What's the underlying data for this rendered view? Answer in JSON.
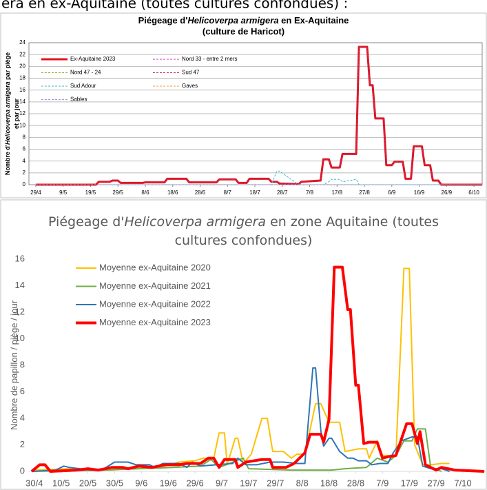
{
  "header_text": "era en ex-Aquitaine (toutes cultures confondues) :",
  "chart_data": [
    {
      "type": "line",
      "title": [
        [
          "Piégeage d'",
          "Helicoverpa armigera",
          " en Ex-Aquitaine"
        ],
        [
          "(culture de Haricot)"
        ]
      ],
      "y_label": [
        [
          "Nombre d'",
          "Helicoverpa armigera",
          " par piège"
        ],
        [
          "et par jour"
        ]
      ],
      "x": [
        0,
        22,
        23,
        27,
        28,
        30,
        31,
        39,
        40,
        47,
        48,
        55,
        56,
        66,
        67,
        73,
        74,
        77,
        78,
        85,
        86,
        88,
        89,
        96,
        97,
        104,
        105,
        107,
        108,
        111,
        112,
        117,
        118,
        121,
        122,
        123,
        124,
        127,
        128,
        130,
        131,
        134,
        135,
        137,
        138,
        141,
        142,
        144,
        145,
        147,
        148,
        163
      ],
      "xlim": [
        -2.5,
        163
      ],
      "xticks": [
        {
          "value": 0,
          "label": "29/4"
        },
        {
          "value": 10,
          "label": "9/5"
        },
        {
          "value": 20,
          "label": "19/5"
        },
        {
          "value": 30,
          "label": "29/5"
        },
        {
          "value": 40,
          "label": "8/6"
        },
        {
          "value": 50,
          "label": "18/6"
        },
        {
          "value": 60,
          "label": "28/6"
        },
        {
          "value": 70,
          "label": "8/7"
        },
        {
          "value": 80,
          "label": "18/7"
        },
        {
          "value": 90,
          "label": "28/7"
        },
        {
          "value": 100,
          "label": "7/8"
        },
        {
          "value": 110,
          "label": "17/8"
        },
        {
          "value": 120,
          "label": "27/8"
        },
        {
          "value": 130,
          "label": "6/9"
        },
        {
          "value": 140,
          "label": "16/9"
        },
        {
          "value": 150,
          "label": "26/9"
        },
        {
          "value": 160,
          "label": "6/10"
        }
      ],
      "ylim": [
        0,
        24
      ],
      "yticks": [
        0,
        2,
        4,
        6,
        8,
        10,
        12,
        14,
        16,
        18,
        20,
        22,
        24
      ],
      "grid": true,
      "legend": "top-left",
      "series": [
        {
          "name": "Ex-Aquitaine 2023",
          "color": "#e0141c",
          "width": 3,
          "line_style": "solid",
          "values": [
            0,
            0,
            0.5,
            0.5,
            0.7,
            0.7,
            0.3,
            0.3,
            0.4,
            0.4,
            1.0,
            1.0,
            0.4,
            0.4,
            0.9,
            0.9,
            0.3,
            0.3,
            1.0,
            1.0,
            0.5,
            0.5,
            0.2,
            0.1,
            0.5,
            0.7,
            4.3,
            4.3,
            2.9,
            2.9,
            5.2,
            5.2,
            23.3,
            23.3,
            16.8,
            16.8,
            11.2,
            11.2,
            3.3,
            3.3,
            3.9,
            3.9,
            1.0,
            1.0,
            6.5,
            6.5,
            3.3,
            3.3,
            0.7,
            0.7,
            0,
            0
          ]
        },
        {
          "name": "Nord 33 - entre 2 mers",
          "color": "#cc33cc",
          "width": 1,
          "line_style": "dashed",
          "values": [
            0,
            0,
            0,
            0,
            0,
            0,
            0,
            0,
            0,
            0,
            0,
            0,
            0,
            0,
            0,
            0,
            0,
            0,
            0,
            0,
            0,
            0,
            0,
            0,
            0,
            0,
            0,
            0,
            0,
            0,
            0,
            0,
            0,
            0,
            0,
            0,
            0,
            0,
            0,
            0,
            0,
            0,
            0,
            0,
            0,
            0,
            0,
            0,
            0,
            0,
            0,
            0
          ]
        },
        {
          "name": "Nord 47 - 24",
          "color": "#99a633",
          "width": 1,
          "line_style": "dashed",
          "values": [
            0,
            0,
            0,
            0,
            0,
            0,
            0,
            0,
            0,
            0,
            0,
            0,
            0,
            0,
            0,
            0,
            0,
            0,
            0,
            0,
            0,
            0,
            0,
            0,
            0,
            0,
            0,
            0,
            0,
            0,
            0,
            0,
            0,
            0,
            0,
            0,
            0,
            0,
            0,
            0,
            0,
            0,
            0,
            0,
            0,
            0,
            0,
            0,
            0,
            0,
            0,
            0
          ]
        },
        {
          "name": "Sud 47",
          "color": "#c0306f",
          "width": 1,
          "line_style": "dashed",
          "values": [
            0,
            0,
            0.5,
            0.5,
            0.7,
            0.7,
            0.3,
            0.3,
            0.4,
            0.4,
            1.0,
            1.0,
            0.4,
            0.4,
            0.9,
            0.9,
            0.3,
            0.3,
            1.0,
            1.0,
            0.5,
            0.5,
            0.2,
            0.1,
            0.5,
            0.7,
            4.3,
            4.3,
            2.9,
            2.9,
            5.2,
            5.2,
            23.3,
            23.3,
            16.8,
            16.8,
            11.2,
            11.2,
            3.3,
            3.3,
            3.9,
            3.9,
            1.0,
            1.0,
            6.5,
            6.5,
            3.3,
            3.3,
            0.7,
            0.7,
            0,
            0
          ]
        },
        {
          "name": "Sud Adour",
          "color": "#33bbcc",
          "width": 1,
          "line_style": "dashed",
          "values": [
            0,
            0,
            0,
            0,
            0,
            0,
            0,
            0,
            0,
            0,
            0,
            0,
            0,
            0,
            0,
            0,
            0,
            0,
            0,
            0,
            0,
            2.3,
            2.3,
            0,
            0,
            0,
            0,
            0.5,
            0.9,
            0.9,
            0.5,
            0.9,
            0,
            0,
            0,
            0,
            0,
            0,
            0,
            0,
            0,
            0,
            0,
            0,
            0,
            0,
            0,
            0,
            0,
            0,
            0,
            0
          ]
        },
        {
          "name": "Gaves",
          "color": "#f0a020",
          "width": 1,
          "line_style": "dashed",
          "values": [
            0,
            0,
            0,
            0,
            0,
            0,
            0,
            0,
            0,
            0,
            0,
            0,
            0,
            0,
            0,
            0,
            0,
            0,
            0,
            0,
            0,
            0,
            0,
            0,
            0,
            0,
            0,
            0,
            0,
            0,
            0,
            0,
            0,
            0,
            0,
            0,
            0,
            0,
            0,
            0,
            0,
            0,
            0,
            0,
            0,
            0,
            0,
            0,
            0,
            0,
            0,
            0
          ]
        },
        {
          "name": "Sables",
          "color": "#9999dd",
          "width": 1,
          "line_style": "dashed",
          "values": [
            0,
            0,
            0,
            0,
            0,
            0,
            0,
            0,
            0,
            0,
            0,
            0,
            0,
            0,
            0,
            0,
            0,
            0,
            0,
            0,
            0,
            0,
            0,
            0,
            0,
            0,
            0,
            0,
            0,
            0,
            0,
            0,
            0,
            0,
            0,
            0,
            0,
            0,
            0,
            0,
            0,
            0,
            0,
            0,
            0,
            0,
            0,
            0,
            0,
            0,
            0,
            0
          ]
        }
      ]
    },
    {
      "type": "line",
      "title": [
        [
          "Piégeage d'",
          "Helicoverpa armigera",
          " en zone Aquitaine (toutes"
        ],
        [
          "cultures confondues)"
        ]
      ],
      "y_label": [
        [
          "Nombre de papillon / piège / jour"
        ]
      ],
      "xlim": [
        -2,
        169
      ],
      "xticks": [
        {
          "value": 0,
          "label": "30/4"
        },
        {
          "value": 10,
          "label": "10/5"
        },
        {
          "value": 20,
          "label": "20/5"
        },
        {
          "value": 30,
          "label": "30/5"
        },
        {
          "value": 40,
          "label": "9/6"
        },
        {
          "value": 50,
          "label": "19/6"
        },
        {
          "value": 60,
          "label": "29/6"
        },
        {
          "value": 70,
          "label": "9/7"
        },
        {
          "value": 80,
          "label": "19/7"
        },
        {
          "value": 90,
          "label": "29/7"
        },
        {
          "value": 100,
          "label": "8/8"
        },
        {
          "value": 110,
          "label": "18/8"
        },
        {
          "value": 120,
          "label": "28/8"
        },
        {
          "value": 130,
          "label": "7/9"
        },
        {
          "value": 140,
          "label": "17/9"
        },
        {
          "value": 150,
          "label": "27/9"
        },
        {
          "value": 160,
          "label": "7/10"
        }
      ],
      "ylim": [
        0,
        16
      ],
      "yticks": [
        0,
        2,
        4,
        6,
        8,
        10,
        12,
        14,
        16
      ],
      "grid": false,
      "legend": "top-left",
      "series": [
        {
          "name": "Moyenne ex-Aquitaine 2020",
          "color": "#ffc000",
          "width": 2,
          "line_style": "solid",
          "x": [
            -1,
            13,
            29,
            39,
            49,
            54,
            60,
            63,
            67,
            69,
            71,
            72,
            75,
            76,
            78,
            81,
            85,
            87,
            89,
            93,
            96,
            98,
            101,
            105,
            107,
            110,
            114,
            116,
            121,
            124,
            125,
            128,
            130,
            135,
            138,
            140,
            142,
            145,
            148,
            152,
            155
          ],
          "values": [
            0.1,
            0.2,
            0.1,
            0.3,
            0.4,
            0.7,
            0.8,
            1.0,
            1.0,
            2.9,
            2.9,
            0.5,
            2.5,
            2.5,
            0.6,
            1.3,
            4.0,
            4.0,
            1.5,
            1.5,
            1.0,
            1.3,
            1.3,
            5.1,
            5.1,
            3.7,
            3.7,
            1.5,
            1.7,
            1.7,
            1.0,
            2.3,
            1.2,
            1.2,
            15.3,
            15.3,
            2.0,
            0.5,
            0.5,
            0.6,
            0.6
          ]
        },
        {
          "name": "Moyenne ex-Aquitaine 2021",
          "color": "#70ad47",
          "width": 2,
          "line_style": "solid",
          "x": [
            -1,
            26,
            52,
            62,
            66,
            69,
            78,
            80,
            96,
            111,
            116,
            124,
            128,
            132,
            135,
            138,
            141,
            143,
            146,
            148,
            152
          ],
          "values": [
            0,
            0.1,
            0.3,
            0.4,
            0.9,
            0.3,
            1.0,
            0.2,
            0.1,
            0.1,
            0.2,
            0.3,
            1.0,
            0.7,
            1.2,
            2.3,
            2.3,
            3.2,
            3.2,
            0.3,
            0
          ]
        },
        {
          "name": "Moyenne ex-Aquitaine 2022",
          "color": "#2e75b6",
          "width": 2,
          "line_style": "solid",
          "x": [
            -1,
            8,
            11,
            13,
            21,
            26,
            30,
            35,
            38,
            43,
            45,
            48,
            54,
            57,
            59,
            62,
            74,
            76,
            79,
            83,
            88,
            93,
            98,
            101,
            102,
            104,
            105,
            107,
            108,
            110,
            111,
            114,
            117,
            119,
            121,
            124,
            126,
            129,
            132,
            134,
            137,
            141,
            143,
            145,
            148,
            152,
            155
          ],
          "values": [
            0,
            0.1,
            0.4,
            0.3,
            0.1,
            0.2,
            0.7,
            0.7,
            0.5,
            0.5,
            0.3,
            0.6,
            0.6,
            0.3,
            0.7,
            0.4,
            0.6,
            1.0,
            0.5,
            0.5,
            0.7,
            0.7,
            0.6,
            0.6,
            3.0,
            7.8,
            7.8,
            3.0,
            1.9,
            2.5,
            2.5,
            1.5,
            1.0,
            1.0,
            0.8,
            0.8,
            0.5,
            0.6,
            0.6,
            1.4,
            2.3,
            2.6,
            2.6,
            0.4,
            0.2,
            0.2,
            0
          ]
        },
        {
          "name": "Moyenne ex-Aquitaine 2023",
          "color": "#ff0000",
          "width": 4,
          "line_style": "solid",
          "x": [
            -1,
            2,
            4,
            6,
            16,
            20,
            24,
            29,
            33,
            35,
            39,
            44,
            49,
            54,
            57,
            62,
            65,
            67,
            69,
            71,
            75,
            76,
            79,
            85,
            88,
            89,
            94,
            97,
            101,
            103,
            107,
            108,
            110,
            112,
            115,
            117,
            118,
            120,
            121,
            123,
            125,
            128,
            130,
            132,
            135,
            139,
            141,
            143,
            144,
            146,
            150,
            152,
            157,
            168
          ],
          "values": [
            0,
            0.5,
            0.5,
            0,
            0.1,
            0.2,
            0.1,
            0.3,
            0.3,
            0.2,
            0.4,
            0.3,
            0.5,
            0.5,
            0.6,
            0.6,
            1.0,
            1.0,
            0.3,
            0.9,
            0.9,
            0.3,
            0.7,
            0.9,
            0.9,
            0.3,
            0.3,
            0.6,
            1.4,
            2.8,
            2.8,
            2.2,
            3.9,
            15.4,
            15.4,
            12.2,
            12.2,
            6.5,
            6.5,
            2.1,
            2.2,
            2.2,
            1.0,
            1.1,
            1.2,
            3.6,
            3.6,
            2.1,
            3.0,
            0.5,
            0.1,
            0.3,
            0.1,
            0
          ]
        }
      ]
    }
  ]
}
